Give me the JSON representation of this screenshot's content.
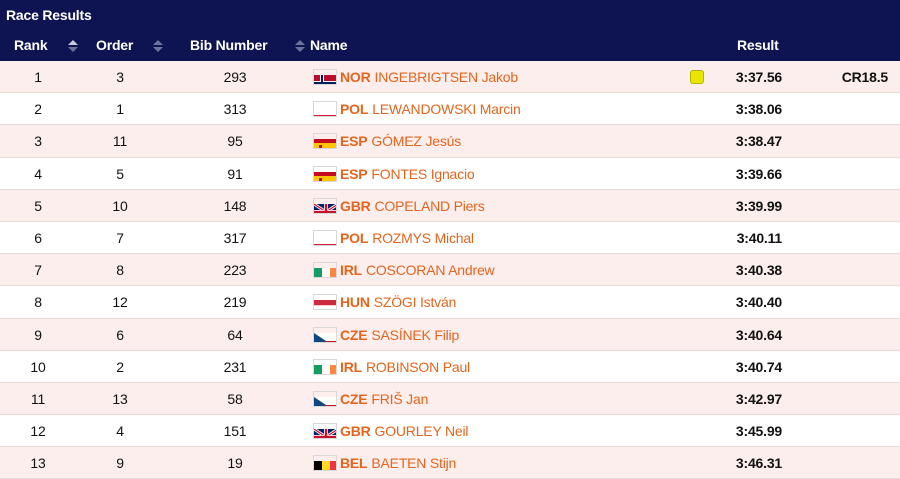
{
  "panel": {
    "title": "Race Results"
  },
  "columns": {
    "rank": "Rank",
    "order": "Order",
    "bib": "Bib Number",
    "name": "Name",
    "result": "Result"
  },
  "colors": {
    "header_bg": "#0d1451",
    "row_alt_bg": "#fbeeec",
    "name_color": "#e4651e",
    "mark_color": "#e9e400"
  },
  "rows": [
    {
      "rank": "1",
      "order": "3",
      "bib": "293",
      "noc": "NOR",
      "flag": "NOR",
      "name": "INGEBRIGTSEN Jakob",
      "result": "3:37.56",
      "record": "CR18.5",
      "mark": true
    },
    {
      "rank": "2",
      "order": "1",
      "bib": "313",
      "noc": "POL",
      "flag": "POL",
      "name": "LEWANDOWSKI Marcin",
      "result": "3:38.06",
      "record": "",
      "mark": false
    },
    {
      "rank": "3",
      "order": "11",
      "bib": "95",
      "noc": "ESP",
      "flag": "ESP",
      "name": "GÓMEZ Jesús",
      "result": "3:38.47",
      "record": "",
      "mark": false
    },
    {
      "rank": "4",
      "order": "5",
      "bib": "91",
      "noc": "ESP",
      "flag": "ESP",
      "name": "FONTES Ignacio",
      "result": "3:39.66",
      "record": "",
      "mark": false
    },
    {
      "rank": "5",
      "order": "10",
      "bib": "148",
      "noc": "GBR",
      "flag": "GBR",
      "name": "COPELAND Piers",
      "result": "3:39.99",
      "record": "",
      "mark": false
    },
    {
      "rank": "6",
      "order": "7",
      "bib": "317",
      "noc": "POL",
      "flag": "POL",
      "name": "ROZMYS Michal",
      "result": "3:40.11",
      "record": "",
      "mark": false
    },
    {
      "rank": "7",
      "order": "8",
      "bib": "223",
      "noc": "IRL",
      "flag": "IRL",
      "name": "COSCORAN Andrew",
      "result": "3:40.38",
      "record": "",
      "mark": false
    },
    {
      "rank": "8",
      "order": "12",
      "bib": "219",
      "noc": "HUN",
      "flag": "HUN",
      "name": "SZÖGI István",
      "result": "3:40.40",
      "record": "",
      "mark": false
    },
    {
      "rank": "9",
      "order": "6",
      "bib": "64",
      "noc": "CZE",
      "flag": "CZE",
      "name": "SASÍNEK Filip",
      "result": "3:40.64",
      "record": "",
      "mark": false
    },
    {
      "rank": "10",
      "order": "2",
      "bib": "231",
      "noc": "IRL",
      "flag": "IRL",
      "name": "ROBINSON Paul",
      "result": "3:40.74",
      "record": "",
      "mark": false
    },
    {
      "rank": "11",
      "order": "13",
      "bib": "58",
      "noc": "CZE",
      "flag": "CZE",
      "name": "FRIŠ Jan",
      "result": "3:42.97",
      "record": "",
      "mark": false
    },
    {
      "rank": "12",
      "order": "4",
      "bib": "151",
      "noc": "GBR",
      "flag": "GBR",
      "name": "GOURLEY Neil",
      "result": "3:45.99",
      "record": "",
      "mark": false
    },
    {
      "rank": "13",
      "order": "9",
      "bib": "19",
      "noc": "BEL",
      "flag": "BEL",
      "name": "BAETEN Stijn",
      "result": "3:46.31",
      "record": "",
      "mark": false
    }
  ]
}
